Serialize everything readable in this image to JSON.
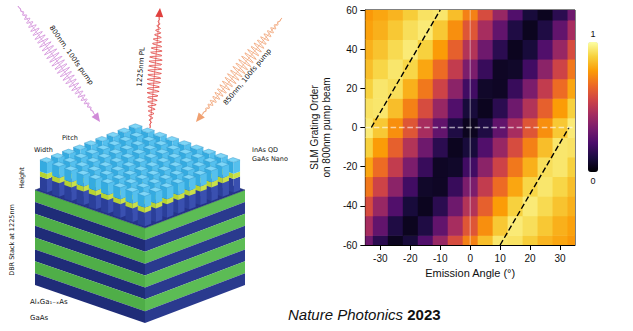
{
  "chart_data": {
    "type": "heatmap",
    "x_label": "Emission Angle (°)",
    "y_label": "SLM Grating Order\non 800nm pump beam",
    "x": [
      -35,
      -30,
      -25,
      -20,
      -15,
      -10,
      -5,
      0,
      5,
      10,
      15,
      20,
      25,
      30,
      35
    ],
    "y": [
      -60,
      -50,
      -40,
      -30,
      -20,
      -10,
      0,
      10,
      20,
      30,
      40,
      50,
      60
    ],
    "cells": [
      [
        0.31,
        0.15,
        0.05,
        0.1,
        0.24,
        0.41,
        0.58,
        0.72,
        0.85,
        0.94,
        0.93,
        0.88,
        0.83,
        0.8,
        0.77
      ],
      [
        0.45,
        0.28,
        0.12,
        0.05,
        0.12,
        0.28,
        0.45,
        0.61,
        0.75,
        0.87,
        0.95,
        0.92,
        0.87,
        0.82,
        0.79
      ],
      [
        0.58,
        0.41,
        0.24,
        0.1,
        0.05,
        0.15,
        0.31,
        0.48,
        0.64,
        0.78,
        0.89,
        0.95,
        0.91,
        0.86,
        0.82
      ],
      [
        0.7,
        0.55,
        0.38,
        0.2,
        0.07,
        0.06,
        0.18,
        0.34,
        0.52,
        0.67,
        0.8,
        0.9,
        0.94,
        0.9,
        0.85
      ],
      [
        0.8,
        0.67,
        0.52,
        0.34,
        0.18,
        0.06,
        0.07,
        0.2,
        0.38,
        0.55,
        0.7,
        0.82,
        0.92,
        0.94,
        0.89
      ],
      [
        0.89,
        0.78,
        0.64,
        0.48,
        0.31,
        0.15,
        0.05,
        0.1,
        0.24,
        0.41,
        0.58,
        0.72,
        0.85,
        0.94,
        0.93
      ],
      [
        0.95,
        0.87,
        0.75,
        0.61,
        0.45,
        0.28,
        0.12,
        0.05,
        0.12,
        0.28,
        0.45,
        0.61,
        0.75,
        0.87,
        0.95
      ],
      [
        0.93,
        0.94,
        0.85,
        0.72,
        0.58,
        0.41,
        0.24,
        0.1,
        0.05,
        0.15,
        0.31,
        0.48,
        0.64,
        0.78,
        0.89
      ],
      [
        0.89,
        0.94,
        0.92,
        0.82,
        0.7,
        0.55,
        0.38,
        0.2,
        0.07,
        0.06,
        0.18,
        0.34,
        0.52,
        0.67,
        0.8
      ],
      [
        0.85,
        0.9,
        0.94,
        0.9,
        0.8,
        0.67,
        0.52,
        0.34,
        0.18,
        0.06,
        0.07,
        0.2,
        0.38,
        0.55,
        0.7
      ],
      [
        0.82,
        0.86,
        0.91,
        0.95,
        0.89,
        0.78,
        0.64,
        0.48,
        0.31,
        0.15,
        0.05,
        0.1,
        0.24,
        0.41,
        0.58
      ],
      [
        0.79,
        0.82,
        0.87,
        0.92,
        0.95,
        0.87,
        0.75,
        0.61,
        0.45,
        0.28,
        0.12,
        0.05,
        0.12,
        0.28,
        0.45
      ],
      [
        0.77,
        0.8,
        0.83,
        0.88,
        0.93,
        0.94,
        0.85,
        0.72,
        0.58,
        0.41,
        0.24,
        0.1,
        0.05,
        0.15,
        0.31
      ]
    ],
    "xlim": [
      -35,
      35
    ],
    "xticks": [
      -30,
      -20,
      -10,
      0,
      10,
      20,
      30
    ],
    "ylim": [
      -60,
      60
    ],
    "yticks": [
      -60,
      -40,
      -20,
      0,
      20,
      40,
      60
    ],
    "colorbar": {
      "range": [
        0,
        1
      ],
      "ticks": [
        0,
        1
      ]
    },
    "lines": [
      {
        "x": [
          -33,
          -10
        ],
        "y": [
          0,
          60
        ],
        "color": "#000000",
        "line_style": "dashed"
      },
      {
        "x": [
          10,
          33
        ],
        "y": [
          -60,
          0
        ],
        "color": "#000000",
        "line_style": "dashed"
      },
      {
        "x": [
          -35,
          35
        ],
        "y": [
          0,
          0
        ],
        "color": "#ffffff",
        "line_style": "dashed"
      },
      {
        "x": [
          0,
          0
        ],
        "y": [
          -60,
          60
        ],
        "color": "#ffffff",
        "line_style": "solid"
      }
    ],
    "grid": false
  },
  "schematic": {
    "pump_left": "800nm, 100fs pump",
    "emission": "1225nm PL",
    "pump_right": "850nm, 100fs pump",
    "pillar_labels": {
      "width": "Width",
      "pitch": "Pitch",
      "height": "Height"
    },
    "pillar_layers": [
      "InAs QD",
      "GaAs Nano"
    ],
    "stack_label": "DBR Stack at 1225nm",
    "stack_layers": [
      "AlₓGa₁₋ₓAs",
      "GaAs"
    ]
  },
  "caption": {
    "journal": "Nature Photonics",
    "year": "2023"
  }
}
